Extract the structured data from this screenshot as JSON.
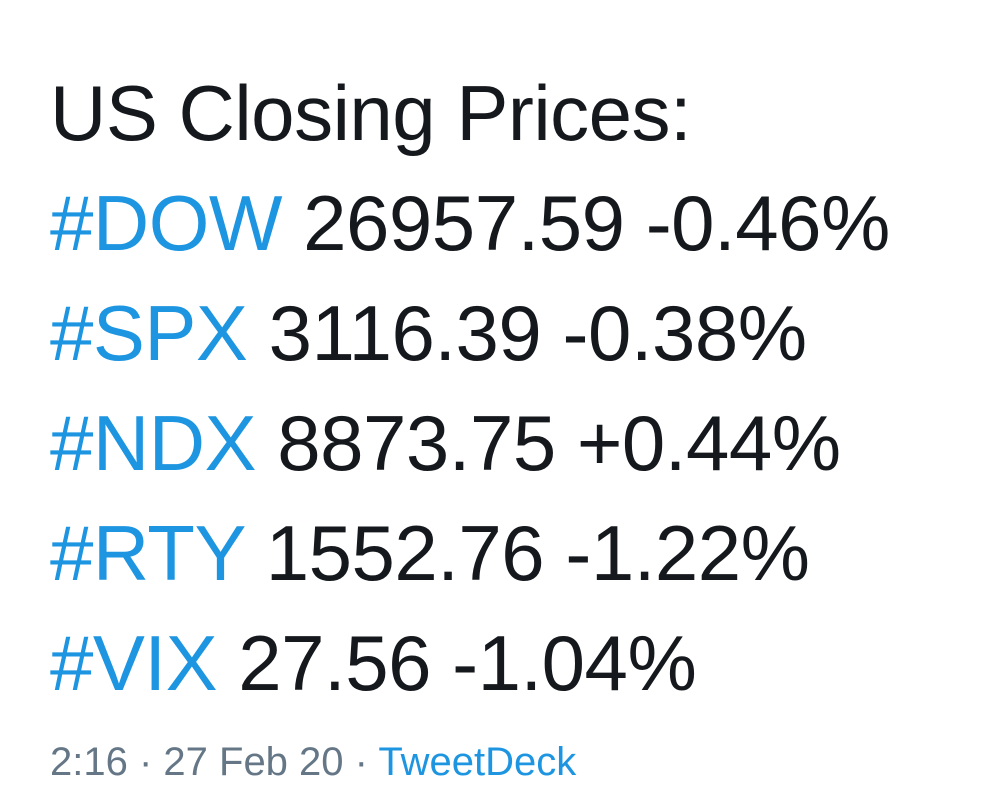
{
  "tweet": {
    "title": "US Closing Prices:",
    "quotes": [
      {
        "tag": "#DOW",
        "price": "26957.59",
        "change": "-0.46%"
      },
      {
        "tag": "#SPX",
        "price": "3116.39",
        "change": "-0.38%"
      },
      {
        "tag": "#NDX",
        "price": "8873.75",
        "change": "+0.44%"
      },
      {
        "tag": "#RTY",
        "price": "1552.76",
        "change": "-1.22%"
      },
      {
        "tag": "#VIX",
        "price": "27.56",
        "change": "-1.04%"
      }
    ]
  },
  "meta": {
    "time_date": "2:16 · 27 Feb 20 ·",
    "source": "TweetDeck"
  },
  "colors": {
    "hashtag": "#1d95e1",
    "text": "#15181c",
    "meta": "#657786",
    "background": "#ffffff"
  }
}
